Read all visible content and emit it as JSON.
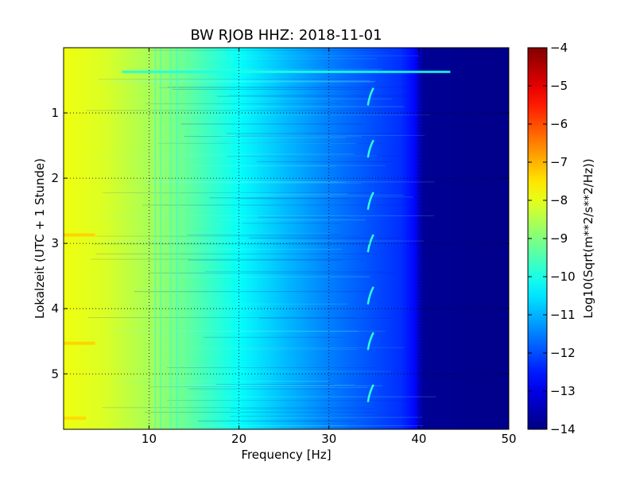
{
  "chart_data": {
    "type": "heatmap",
    "title": "BW RJOB HHZ: 2018-11-01",
    "xlabel": "Frequency [Hz]",
    "ylabel": "Lokalzeit (UTC + 1 Stunde)",
    "xlim": [
      0.5,
      50
    ],
    "ylim": [
      5.85,
      0.0
    ],
    "xticks": [
      10,
      20,
      30,
      40,
      50
    ],
    "yticks": [
      1,
      2,
      3,
      4,
      5
    ],
    "grid": "dotted",
    "colorbar": {
      "label": "Log10(Sqrt(m**2/s**2/Hz))",
      "range": [
        -14,
        -4
      ],
      "ticks": [
        -4,
        -5,
        -6,
        -7,
        -8,
        -9,
        -10,
        -11,
        -12,
        -13,
        -14
      ],
      "colormap": "jet"
    },
    "value_profile_by_frequency": [
      {
        "f": 0.5,
        "v": -7.9
      },
      {
        "f": 5,
        "v": -8.1
      },
      {
        "f": 10,
        "v": -8.6
      },
      {
        "f": 15,
        "v": -9.4
      },
      {
        "f": 20,
        "v": -10.2
      },
      {
        "f": 25,
        "v": -10.9
      },
      {
        "f": 30,
        "v": -11.5
      },
      {
        "f": 35,
        "v": -12.0
      },
      {
        "f": 38,
        "v": -12.3
      },
      {
        "f": 39.5,
        "v": -12.7
      },
      {
        "f": 40.5,
        "v": -13.8
      },
      {
        "f": 50,
        "v": -13.9
      }
    ],
    "features": [
      {
        "kind": "horizontal_line",
        "time": 0.37,
        "f_start": 7,
        "f_end": 43.5,
        "v": -10.0
      },
      {
        "kind": "vertical_line",
        "freq": 10.7,
        "v": -9.6
      },
      {
        "kind": "vertical_line",
        "freq": 11.3,
        "v": -9.7
      },
      {
        "kind": "vertical_line",
        "freq": 12.4,
        "v": -9.6
      },
      {
        "kind": "vertical_line",
        "freq": 13.1,
        "v": -9.8
      },
      {
        "kind": "tone_burst",
        "time": 0.75,
        "freq": 34.6,
        "v": -9.8
      },
      {
        "kind": "tone_burst",
        "time": 1.55,
        "freq": 34.6,
        "v": -9.8
      },
      {
        "kind": "tone_burst",
        "time": 2.35,
        "freq": 34.6,
        "v": -9.8
      },
      {
        "kind": "tone_burst",
        "time": 3.0,
        "freq": 34.6,
        "v": -9.8
      },
      {
        "kind": "tone_burst",
        "time": 3.8,
        "freq": 34.6,
        "v": -9.8
      },
      {
        "kind": "tone_burst",
        "time": 4.5,
        "freq": 34.6,
        "v": -9.8
      },
      {
        "kind": "tone_burst",
        "time": 5.3,
        "freq": 34.6,
        "v": -9.8
      },
      {
        "kind": "low_freq_burst",
        "time": 2.87,
        "f_start": 0.5,
        "f_end": 4,
        "v": -7.3
      },
      {
        "kind": "low_freq_burst",
        "time": 4.53,
        "f_start": 0.5,
        "f_end": 4,
        "v": -7.3
      },
      {
        "kind": "low_freq_burst",
        "time": 5.68,
        "f_start": 0.5,
        "f_end": 3,
        "v": -7.4
      }
    ]
  }
}
